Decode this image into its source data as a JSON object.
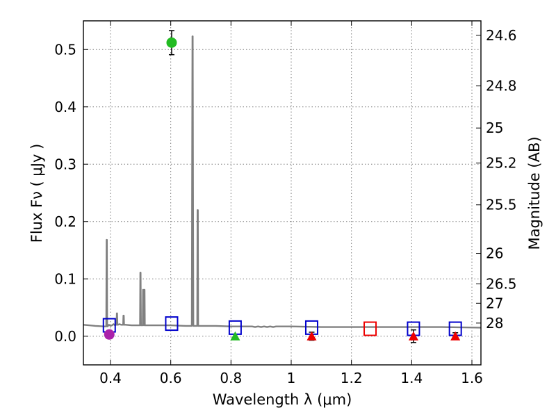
{
  "chart_data": {
    "type": "scatter",
    "xlabel": "Wavelength  λ (μm)",
    "ylabel": "Flux  Fν  ( μJy )",
    "y2label": "Magnitude (AB)",
    "xlim": [
      0.31,
      1.63
    ],
    "ylim": [
      -0.05,
      0.55
    ],
    "grid": true,
    "x_ticks": [
      0.4,
      0.6,
      0.8,
      1.0,
      1.2,
      1.4,
      1.6
    ],
    "x_tick_labels": [
      "0.4",
      "0.6",
      "0.8",
      "1",
      "1.2",
      "1.4",
      "1.6"
    ],
    "y_ticks": [
      0.0,
      0.1,
      0.2,
      0.3,
      0.4,
      0.5
    ],
    "y_tick_labels": [
      "0.0",
      "0.1",
      "0.2",
      "0.3",
      "0.4",
      "0.5"
    ],
    "magnitude_ticks": [
      {
        "label": "24.6",
        "flux": 0.5248
      },
      {
        "label": "24.8",
        "flux": 0.4365
      },
      {
        "label": "25",
        "flux": 0.3631
      },
      {
        "label": "25.2",
        "flux": 0.302
      },
      {
        "label": "25.5",
        "flux": 0.2291
      },
      {
        "label": "26",
        "flux": 0.1445
      },
      {
        "label": "26.5",
        "flux": 0.0912
      },
      {
        "label": "27",
        "flux": 0.0575
      },
      {
        "label": "28",
        "flux": 0.0229
      }
    ],
    "spectrum": {
      "name": "model SED",
      "color": "#808080",
      "x": [
        0.31,
        0.35,
        0.38,
        0.386,
        0.387,
        0.388,
        0.389,
        0.39,
        0.395,
        0.4,
        0.405,
        0.41,
        0.415,
        0.418,
        0.42,
        0.421,
        0.422,
        0.423,
        0.425,
        0.43,
        0.435,
        0.44,
        0.442,
        0.443,
        0.444,
        0.445,
        0.446,
        0.45,
        0.47,
        0.49,
        0.498,
        0.499,
        0.5,
        0.501,
        0.502,
        0.503,
        0.505,
        0.507,
        0.508,
        0.509,
        0.511,
        0.512,
        0.513,
        0.514,
        0.515,
        0.516,
        0.517,
        0.52,
        0.55,
        0.6,
        0.65,
        0.67,
        0.671,
        0.672,
        0.673,
        0.674,
        0.675,
        0.676,
        0.677,
        0.678,
        0.68,
        0.685,
        0.688,
        0.689,
        0.69,
        0.691,
        0.692,
        0.694,
        0.7,
        0.75,
        0.8,
        0.85,
        0.87,
        0.88,
        0.89,
        0.9,
        0.91,
        0.92,
        0.93,
        0.94,
        0.95,
        1.0,
        1.1,
        1.2,
        1.3,
        1.4,
        1.5,
        1.63
      ],
      "y": [
        0.02,
        0.018,
        0.017,
        0.017,
        0.168,
        0.168,
        0.017,
        0.017,
        0.02,
        0.018,
        0.019,
        0.021,
        0.019,
        0.02,
        0.02,
        0.04,
        0.04,
        0.02,
        0.02,
        0.021,
        0.02,
        0.02,
        0.02,
        0.036,
        0.036,
        0.02,
        0.02,
        0.02,
        0.019,
        0.019,
        0.019,
        0.111,
        0.111,
        0.019,
        0.019,
        0.019,
        0.019,
        0.019,
        0.081,
        0.081,
        0.019,
        0.081,
        0.081,
        0.019,
        0.019,
        0.019,
        0.019,
        0.019,
        0.019,
        0.019,
        0.018,
        0.018,
        0.26,
        0.523,
        0.523,
        0.26,
        0.018,
        0.018,
        0.018,
        0.018,
        0.018,
        0.018,
        0.018,
        0.22,
        0.22,
        0.018,
        0.018,
        0.018,
        0.018,
        0.018,
        0.017,
        0.017,
        0.017,
        0.016,
        0.017,
        0.016,
        0.017,
        0.016,
        0.017,
        0.016,
        0.017,
        0.017,
        0.016,
        0.016,
        0.016,
        0.016,
        0.016,
        0.015
      ]
    },
    "points": [
      {
        "name": "observed-green-circle",
        "x": 0.603,
        "y": 0.512,
        "err": 0.021,
        "marker": "circle",
        "color": "#22bb22"
      },
      {
        "name": "observed-magenta-circle",
        "x": 0.396,
        "y": 0.003,
        "err": 0.007,
        "marker": "circle",
        "color": "#aa22aa"
      },
      {
        "name": "limit-green-triangle",
        "x": 0.814,
        "y": 0.0,
        "marker": "triangle",
        "color": "#22bb22"
      },
      {
        "name": "limit-red-triangle-1",
        "x": 1.068,
        "y": 0.0,
        "err": 0.007,
        "marker": "triangle",
        "color": "#ee0000"
      },
      {
        "name": "limit-red-triangle-2",
        "x": 1.406,
        "y": 0.0,
        "err": 0.011,
        "marker": "triangle",
        "color": "#ee0000"
      },
      {
        "name": "limit-red-triangle-3",
        "x": 1.545,
        "y": 0.0,
        "err": 0.006,
        "marker": "triangle",
        "color": "#ee0000"
      }
    ],
    "model_photometry": [
      {
        "x": 0.396,
        "y": 0.019,
        "color": "#0000cc"
      },
      {
        "x": 0.603,
        "y": 0.022,
        "color": "#0000cc"
      },
      {
        "x": 0.814,
        "y": 0.015,
        "color": "#0000cc"
      },
      {
        "x": 1.068,
        "y": 0.015,
        "color": "#0000cc"
      },
      {
        "x": 1.262,
        "y": 0.013,
        "color": "#ee0000"
      },
      {
        "x": 1.406,
        "y": 0.013,
        "color": "#0000cc"
      },
      {
        "x": 1.545,
        "y": 0.013,
        "color": "#0000cc"
      }
    ]
  }
}
